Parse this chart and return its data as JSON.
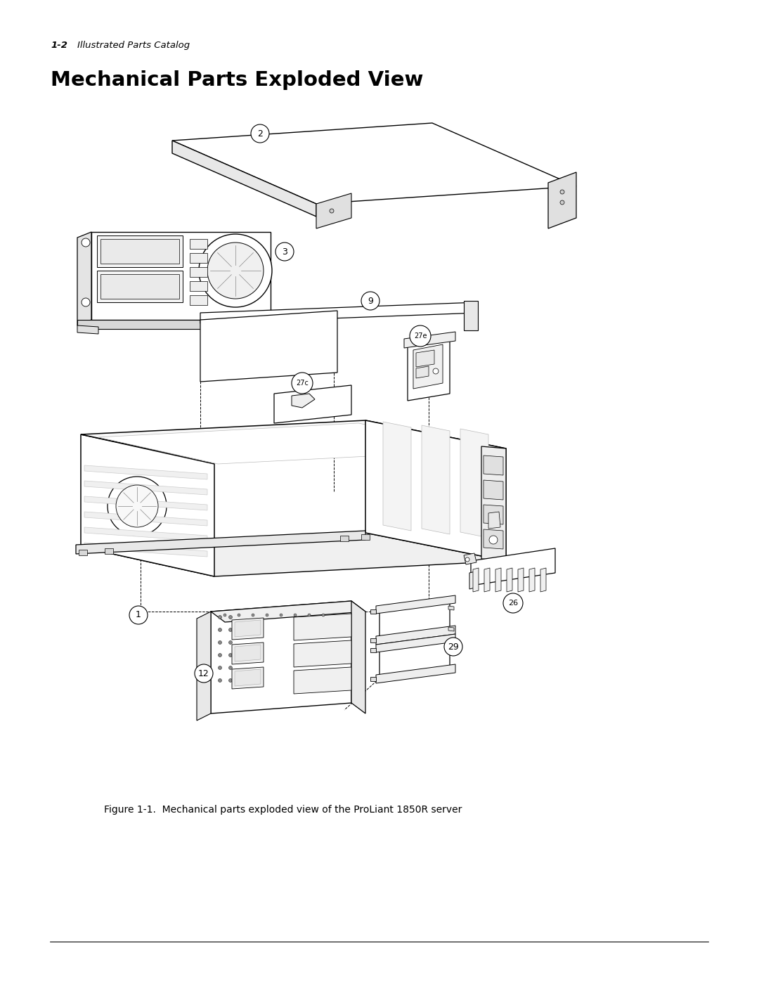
{
  "page_header_num": "1-2",
  "page_header_text": "Illustrated Parts Catalog",
  "title": "Mechanical Parts Exploded View",
  "caption": "Figure 1-1.  Mechanical parts exploded view of the ProLiant 1850R server",
  "bg_color": "#ffffff",
  "line_color": "#000000",
  "footer_line_color": "#555555",
  "figsize": [
    10.8,
    13.97
  ],
  "dpi": 100
}
